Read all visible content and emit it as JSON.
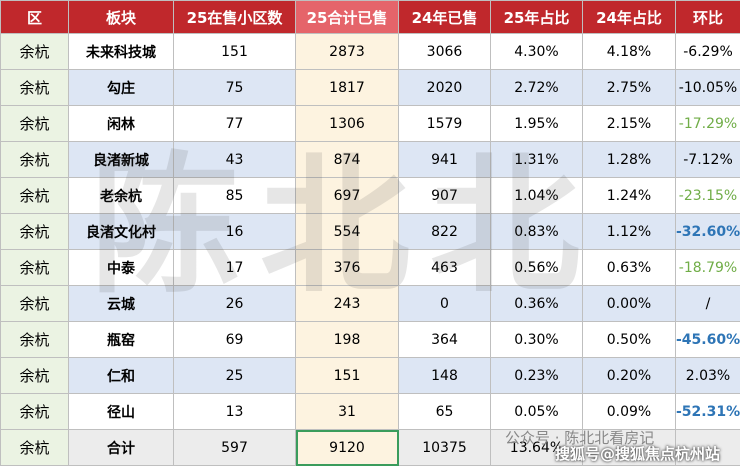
{
  "table": {
    "header": [
      "区",
      "板块",
      "25在售小区数",
      "25合计已售",
      "24年已售",
      "25年占比",
      "24年占比",
      "环比"
    ],
    "rows": [
      [
        "余杭",
        "未来科技城",
        "151",
        "2873",
        "3066",
        "4.30%",
        "4.18%",
        "-6.29%"
      ],
      [
        "余杭",
        "勾庄",
        "75",
        "1817",
        "2020",
        "2.72%",
        "2.75%",
        "-10.05%"
      ],
      [
        "余杭",
        "闲林",
        "77",
        "1306",
        "1579",
        "1.95%",
        "2.15%",
        "-17.29%"
      ],
      [
        "余杭",
        "良渚新城",
        "43",
        "874",
        "941",
        "1.31%",
        "1.28%",
        "-7.12%"
      ],
      [
        "余杭",
        "老余杭",
        "85",
        "697",
        "907",
        "1.04%",
        "1.24%",
        "-23.15%"
      ],
      [
        "余杭",
        "良渚文化村",
        "16",
        "554",
        "822",
        "0.83%",
        "1.12%",
        "-32.60%"
      ],
      [
        "余杭",
        "中泰",
        "17",
        "376",
        "463",
        "0.56%",
        "0.63%",
        "-18.79%"
      ],
      [
        "余杭",
        "云城",
        "26",
        "243",
        "0",
        "0.36%",
        "0.00%",
        "/"
      ],
      [
        "余杭",
        "瓶窑",
        "69",
        "198",
        "364",
        "0.30%",
        "0.50%",
        "-45.60%"
      ],
      [
        "余杭",
        "仁和",
        "25",
        "151",
        "148",
        "0.23%",
        "0.20%",
        "2.03%"
      ],
      [
        "余杭",
        "径山",
        "13",
        "31",
        "65",
        "0.05%",
        "0.09%",
        "-52.31%"
      ],
      [
        "余杭",
        "合计",
        "597",
        "9120",
        "10375",
        "13.64%"
      ]
    ],
    "change_colors": [
      "#000000",
      "#000000",
      "#70ad47",
      "#000000",
      "#70ad47",
      "#2e75b6",
      "#70ad47",
      "#000000",
      "#2e75b6",
      "#000000",
      "#2e75b6",
      "#000000"
    ]
  },
  "watermark": {
    "main": "陈北北",
    "account": "公众号 · 陈北北看房记",
    "source": "搜狐号@搜狐焦点杭州站"
  }
}
